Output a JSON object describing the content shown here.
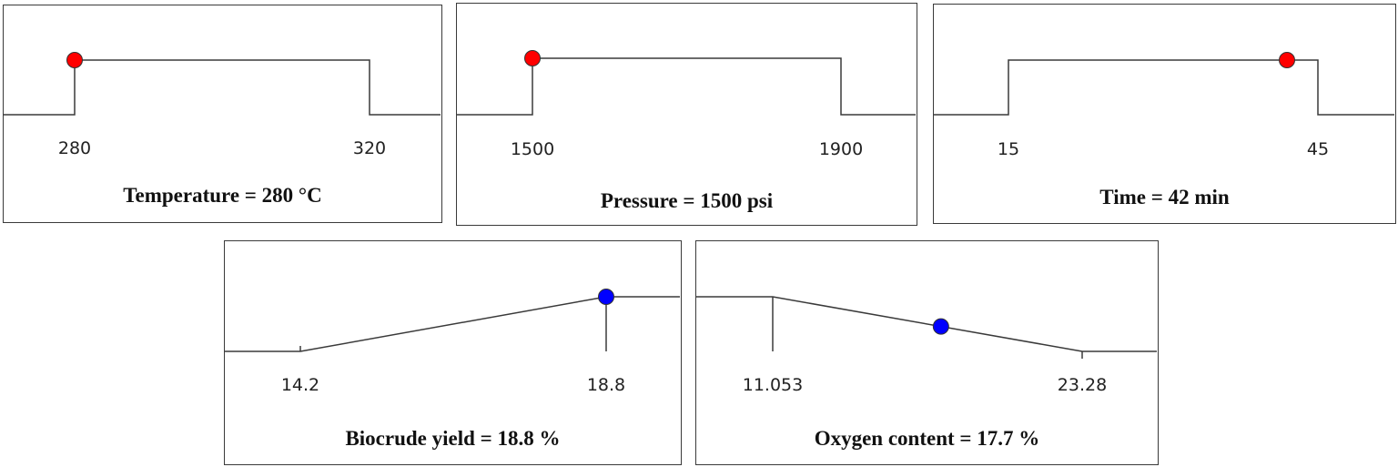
{
  "chart_data": [
    {
      "type": "line",
      "kind": "factor",
      "low": 280,
      "high": 320,
      "tick_labels": [
        "280",
        "320"
      ],
      "setting": 280,
      "title": "Temperature = 280 °C",
      "marker_color": "#ff0000"
    },
    {
      "type": "line",
      "kind": "factor",
      "low": 1500,
      "high": 1900,
      "tick_labels": [
        "1500",
        "1900"
      ],
      "setting": 1500,
      "title": "Pressure = 1500 psi",
      "marker_color": "#ff0000"
    },
    {
      "type": "line",
      "kind": "factor",
      "low": 15,
      "high": 45,
      "tick_labels": [
        "15",
        "45"
      ],
      "setting": 42,
      "title": "Time = 42 min",
      "marker_color": "#ff0000"
    },
    {
      "type": "line",
      "kind": "maximize",
      "low": 14.2,
      "high": 18.8,
      "tick_labels": [
        "14.2",
        "18.8"
      ],
      "setting": 18.8,
      "title": "Biocrude yield = 18.8 %",
      "marker_color": "#0000ff"
    },
    {
      "type": "line",
      "kind": "minimize",
      "low": 11.053,
      "high": 23.28,
      "tick_labels": [
        "11.053",
        "23.28"
      ],
      "setting": 17.7,
      "title": "Oxygen content = 17.7 %",
      "marker_color": "#0000ff"
    }
  ]
}
